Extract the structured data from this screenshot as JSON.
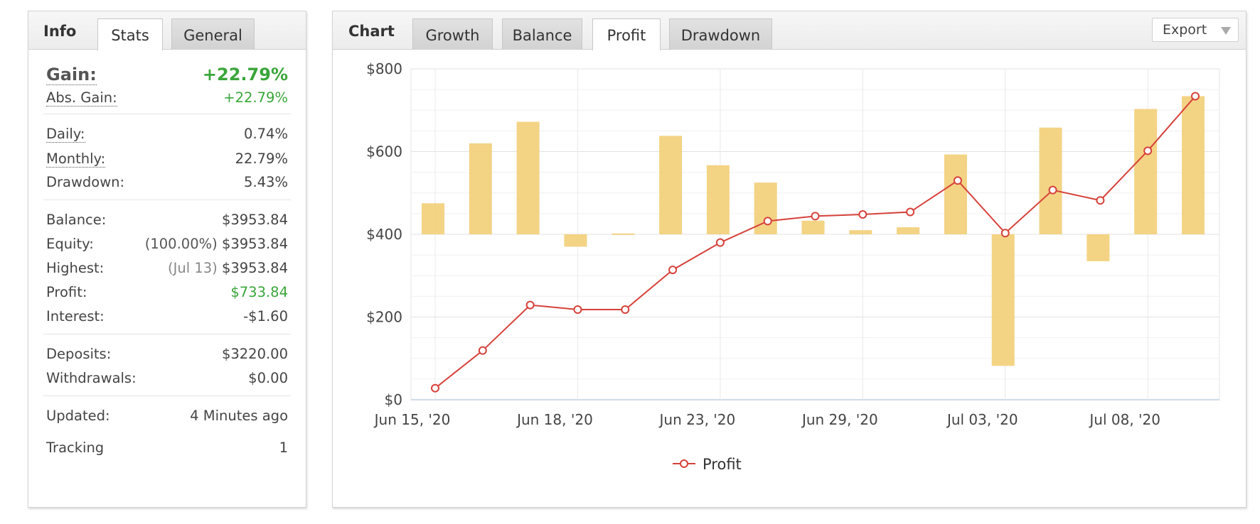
{
  "info": {
    "tabs": [
      {
        "label": "Info"
      },
      {
        "label": "Stats"
      },
      {
        "label": "General"
      }
    ],
    "gain_label": "Gain:",
    "gain_value": "+22.79%",
    "abs_gain_label": "Abs. Gain:",
    "abs_gain_value": "+22.79%",
    "daily_label": "Daily:",
    "daily_value": "0.74%",
    "monthly_label": "Monthly:",
    "monthly_value": "22.79%",
    "drawdown_label": "Drawdown:",
    "drawdown_value": "5.43%",
    "balance_label": "Balance:",
    "balance_value": "$3953.84",
    "equity_label": "Equity:",
    "equity_note": "(100.00%)",
    "equity_value": "$3953.84",
    "highest_label": "Highest:",
    "highest_note": "(Jul 13)",
    "highest_value": "$3953.84",
    "profit_label": "Profit:",
    "profit_value": "$733.84",
    "interest_label": "Interest:",
    "interest_value": "-$1.60",
    "deposits_label": "Deposits:",
    "deposits_value": "$3220.00",
    "withdrawals_label": "Withdrawals:",
    "withdrawals_value": "$0.00",
    "updated_label": "Updated:",
    "updated_value": "4 Minutes ago",
    "tracking_label": "Tracking",
    "tracking_value": "1"
  },
  "chart_panel": {
    "title": "Chart",
    "tabs": [
      {
        "label": "Growth"
      },
      {
        "label": "Balance"
      },
      {
        "label": "Profit"
      },
      {
        "label": "Drawdown"
      }
    ],
    "active_tab": "Profit",
    "export_label": "Export"
  },
  "colors": {
    "bar": "#f2cf7a",
    "line": "#d6413a",
    "gain_green": "#3aa63a"
  },
  "chart_data": {
    "type": "bar+line",
    "y_tick_labels": [
      "$0",
      "$200",
      "$400",
      "$600",
      "$800"
    ],
    "ylim": [
      0,
      800
    ],
    "x_tick_labels": [
      "Jun 15, '20",
      "Jun 18, '20",
      "Jun 23, '20",
      "Jun 29, '20",
      "Jul 03, '20",
      "Jul 08, '20"
    ],
    "legend": "Profit",
    "bars": {
      "baseline": 400,
      "values": [
        475,
        620,
        672,
        370,
        402,
        638,
        567,
        525,
        433,
        410,
        417,
        593,
        82,
        658,
        335,
        703,
        734
      ]
    },
    "series": [
      {
        "name": "Profit",
        "values": [
          28,
          119,
          229,
          218,
          218,
          314,
          380,
          432,
          444,
          448,
          454,
          530,
          403,
          507,
          482,
          602,
          734
        ]
      }
    ]
  }
}
